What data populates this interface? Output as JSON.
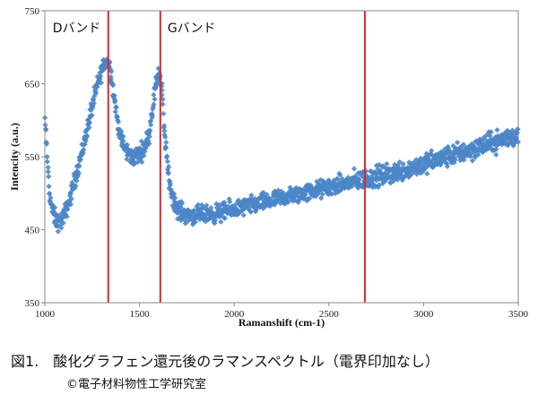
{
  "chart_data": {
    "type": "scatter",
    "title": "",
    "xlabel": "Ramanshift (cm-1)",
    "ylabel": "Intencity (a.u.)",
    "xlim": [
      1000,
      3500
    ],
    "ylim": [
      350,
      750
    ],
    "xticks": [
      1000,
      1500,
      2000,
      2500,
      3000,
      3500
    ],
    "yticks": [
      350,
      450,
      550,
      650,
      750
    ],
    "grid": false,
    "legend": "none",
    "marker_color": "#4a86c8",
    "marker_shape": "diamond",
    "series": [
      {
        "x": [
          1000,
          1010,
          1025,
          1040,
          1060,
          1080,
          1100,
          1130,
          1160,
          1200,
          1230,
          1260,
          1290,
          1310,
          1330,
          1345,
          1360,
          1380,
          1400,
          1430,
          1460,
          1490,
          1520,
          1550,
          1570,
          1590,
          1600,
          1615,
          1630,
          1650,
          1670,
          1700,
          1750,
          1800,
          1900,
          2000,
          2100,
          2200,
          2300,
          2400,
          2500,
          2600,
          2700,
          2800,
          2900,
          3000,
          3100,
          3200,
          3300,
          3400,
          3450,
          3500
        ],
        "y": [
          600,
          560,
          500,
          475,
          462,
          460,
          468,
          490,
          520,
          560,
          595,
          630,
          660,
          675,
          682,
          672,
          645,
          605,
          575,
          558,
          550,
          552,
          560,
          580,
          620,
          655,
          668,
          650,
          590,
          530,
          500,
          478,
          470,
          470,
          472,
          478,
          484,
          490,
          496,
          502,
          508,
          514,
          520,
          525,
          532,
          540,
          548,
          556,
          564,
          572,
          576,
          580
        ]
      }
    ],
    "annotations": [
      {
        "label": "Dバンド",
        "x": 1335
      },
      {
        "label": "Gバンド",
        "x": 1610
      },
      {
        "label": "",
        "x": 2690
      }
    ],
    "line_color": "#e0262b"
  },
  "caption": {
    "title": "図1.　酸化グラフェン還元後のラマンスペクトル（電界印加なし）",
    "credit": "©電子材料物性工学研究室"
  }
}
